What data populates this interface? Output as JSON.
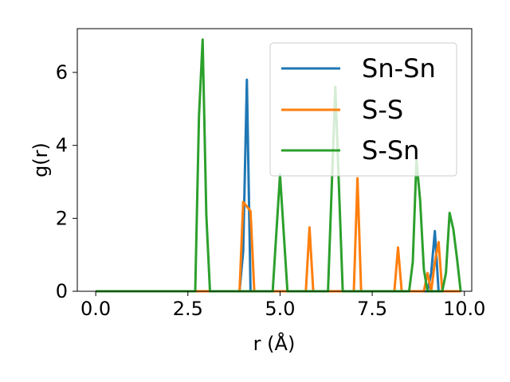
{
  "chart_data": {
    "type": "line",
    "xlabel": "r (Å)",
    "ylabel": "g(r)",
    "xlim": [
      -0.5,
      10.2
    ],
    "ylim": [
      0,
      7.2
    ],
    "xticks": [
      0.0,
      2.5,
      5.0,
      7.5,
      10.0
    ],
    "xtick_labels": [
      "0.0",
      "2.5",
      "5.0",
      "7.5",
      "10.0"
    ],
    "yticks": [
      0,
      2,
      4,
      6
    ],
    "ytick_labels": [
      "0",
      "2",
      "4",
      "6"
    ],
    "grid": false,
    "legend_position": "top-right",
    "series": [
      {
        "name": "Sn-Sn",
        "color": "#1f77b4",
        "points": [
          [
            0.0,
            0
          ],
          [
            3.9,
            0
          ],
          [
            4.0,
            1.1
          ],
          [
            4.1,
            5.8
          ],
          [
            4.2,
            0
          ],
          [
            9.0,
            0
          ],
          [
            9.1,
            0.5
          ],
          [
            9.2,
            1.65
          ],
          [
            9.3,
            0
          ],
          [
            9.9,
            0
          ]
        ]
      },
      {
        "name": "S-S",
        "color": "#ff7f0e",
        "points": [
          [
            0.0,
            0
          ],
          [
            3.9,
            0
          ],
          [
            4.0,
            2.45
          ],
          [
            4.2,
            2.2
          ],
          [
            4.3,
            0
          ],
          [
            5.7,
            0
          ],
          [
            5.8,
            1.75
          ],
          [
            5.9,
            0
          ],
          [
            7.0,
            0
          ],
          [
            7.1,
            3.1
          ],
          [
            7.2,
            0
          ],
          [
            8.1,
            0
          ],
          [
            8.2,
            1.2
          ],
          [
            8.3,
            0
          ],
          [
            8.9,
            0
          ],
          [
            9.0,
            0.5
          ],
          [
            9.1,
            0
          ],
          [
            9.2,
            0.8
          ],
          [
            9.3,
            1.35
          ],
          [
            9.4,
            0
          ],
          [
            9.9,
            0
          ]
        ]
      },
      {
        "name": "S-Sn",
        "color": "#2ca02c",
        "points": [
          [
            0.0,
            0
          ],
          [
            2.7,
            0
          ],
          [
            2.8,
            4.8
          ],
          [
            2.9,
            6.9
          ],
          [
            3.0,
            2.1
          ],
          [
            3.1,
            0
          ],
          [
            4.8,
            0
          ],
          [
            5.0,
            3.2
          ],
          [
            5.2,
            0
          ],
          [
            6.3,
            0
          ],
          [
            6.5,
            5.6
          ],
          [
            6.7,
            0
          ],
          [
            8.5,
            0
          ],
          [
            8.6,
            0.8
          ],
          [
            8.7,
            3.6
          ],
          [
            8.8,
            2.5
          ],
          [
            8.9,
            0.6
          ],
          [
            9.0,
            0
          ],
          [
            9.4,
            0
          ],
          [
            9.5,
            0.5
          ],
          [
            9.6,
            2.15
          ],
          [
            9.7,
            1.7
          ],
          [
            9.8,
            0.9
          ],
          [
            9.9,
            0
          ]
        ]
      }
    ]
  }
}
